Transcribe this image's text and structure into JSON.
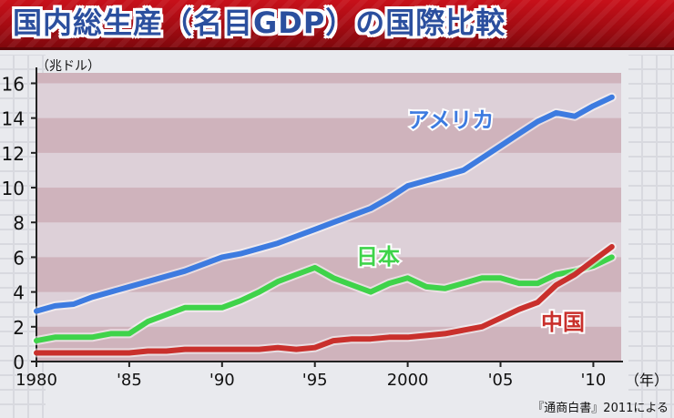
{
  "title": "国内総生産（名目GDP）の国際比較",
  "unit_label": "（兆ドル）",
  "source": "『通商白書』2011による",
  "chart_data": {
    "type": "line",
    "xlabel": "（年）",
    "ylabel": "",
    "xlim": [
      1980,
      2011.5
    ],
    "ylim": [
      0,
      16.6
    ],
    "y_ticks": [
      0,
      2,
      4,
      6,
      8,
      10,
      12,
      14,
      16
    ],
    "x_ticks": [
      {
        "value": 1980,
        "label": "1980"
      },
      {
        "value": 1985,
        "label": "'85"
      },
      {
        "value": 1990,
        "label": "'90"
      },
      {
        "value": 1995,
        "label": "'95"
      },
      {
        "value": 2000,
        "label": "2000"
      },
      {
        "value": 2005,
        "label": "'05"
      },
      {
        "value": 2010,
        "label": "'10"
      }
    ],
    "grid": "horizontal bands",
    "series": [
      {
        "name": "アメリカ",
        "color": "#3d7be0",
        "x": [
          1980,
          1981,
          1982,
          1983,
          1984,
          1985,
          1986,
          1987,
          1988,
          1989,
          1990,
          1991,
          1992,
          1993,
          1994,
          1995,
          1996,
          1997,
          1998,
          1999,
          2000,
          2001,
          2002,
          2003,
          2004,
          2005,
          2006,
          2007,
          2008,
          2009,
          2010,
          2011
        ],
        "values": [
          2.9,
          3.2,
          3.3,
          3.7,
          4.0,
          4.3,
          4.6,
          4.9,
          5.2,
          5.6,
          6.0,
          6.2,
          6.5,
          6.8,
          7.2,
          7.6,
          8.0,
          8.4,
          8.8,
          9.4,
          10.1,
          10.4,
          10.7,
          11.0,
          11.7,
          12.4,
          13.1,
          13.8,
          14.3,
          14.1,
          14.7,
          15.2
        ]
      },
      {
        "name": "日本",
        "color": "#3fd34a",
        "x": [
          1980,
          1981,
          1982,
          1983,
          1984,
          1985,
          1986,
          1987,
          1988,
          1989,
          1990,
          1991,
          1992,
          1993,
          1994,
          1995,
          1996,
          1997,
          1998,
          1999,
          2000,
          2001,
          2002,
          2003,
          2004,
          2005,
          2006,
          2007,
          2008,
          2009,
          2010,
          2011
        ],
        "values": [
          1.2,
          1.4,
          1.4,
          1.4,
          1.6,
          1.6,
          2.3,
          2.7,
          3.1,
          3.1,
          3.1,
          3.5,
          4.0,
          4.6,
          5.0,
          5.4,
          4.8,
          4.4,
          4.0,
          4.5,
          4.8,
          4.3,
          4.2,
          4.5,
          4.8,
          4.8,
          4.5,
          4.5,
          5.0,
          5.2,
          5.5,
          6.0
        ]
      },
      {
        "name": "中国",
        "color": "#c9302c",
        "x": [
          1980,
          1981,
          1982,
          1983,
          1984,
          1985,
          1986,
          1987,
          1988,
          1989,
          1990,
          1991,
          1992,
          1993,
          1994,
          1995,
          1996,
          1997,
          1998,
          1999,
          2000,
          2001,
          2002,
          2003,
          2004,
          2005,
          2006,
          2007,
          2008,
          2009,
          2010,
          2011
        ],
        "values": [
          0.5,
          0.5,
          0.5,
          0.5,
          0.5,
          0.5,
          0.6,
          0.6,
          0.7,
          0.7,
          0.7,
          0.7,
          0.7,
          0.8,
          0.7,
          0.8,
          1.2,
          1.3,
          1.3,
          1.4,
          1.4,
          1.5,
          1.6,
          1.8,
          2.0,
          2.5,
          3.0,
          3.4,
          4.4,
          5.0,
          5.8,
          6.6
        ]
      }
    ]
  }
}
